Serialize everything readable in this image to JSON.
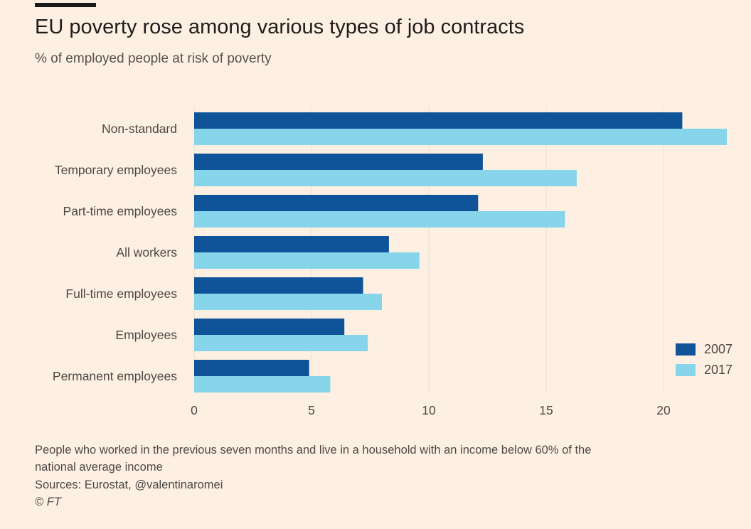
{
  "header": {
    "title": "EU poverty rose among various types of job contracts",
    "subtitle": "% of employed people at risk of poverty"
  },
  "footer": {
    "note_line1": "People who worked in the previous seven months and live in a household with an income below 60% of the",
    "note_line2": "national average income",
    "sources": "Sources: Eurostat, @valentinaromei",
    "credit": "© FT"
  },
  "colors": {
    "background": "#fdf0e3",
    "series_2007": "#0f5499",
    "series_2017": "#86d5ea",
    "grid": "#eadfd3"
  },
  "chart_data": {
    "type": "bar",
    "orientation": "horizontal",
    "title": "EU poverty rose among various types of job contracts",
    "subtitle": "% of employed people at risk of poverty",
    "xlabel": "",
    "ylabel": "",
    "xlim": [
      0,
      23
    ],
    "xticks": [
      0,
      5,
      10,
      15,
      20
    ],
    "grid": true,
    "legend_position": "bottom-right",
    "categories": [
      "Non-standard",
      "Temporary employees",
      "Part-time employees",
      "All workers",
      "Full-time employees",
      "Employees",
      "Permanent employees"
    ],
    "series": [
      {
        "name": "2007",
        "color": "#0f5499",
        "values": [
          20.8,
          12.3,
          12.1,
          8.3,
          7.2,
          6.4,
          4.9
        ]
      },
      {
        "name": "2017",
        "color": "#86d5ea",
        "values": [
          22.7,
          16.3,
          15.8,
          9.6,
          8.0,
          7.4,
          5.8
        ]
      }
    ]
  }
}
